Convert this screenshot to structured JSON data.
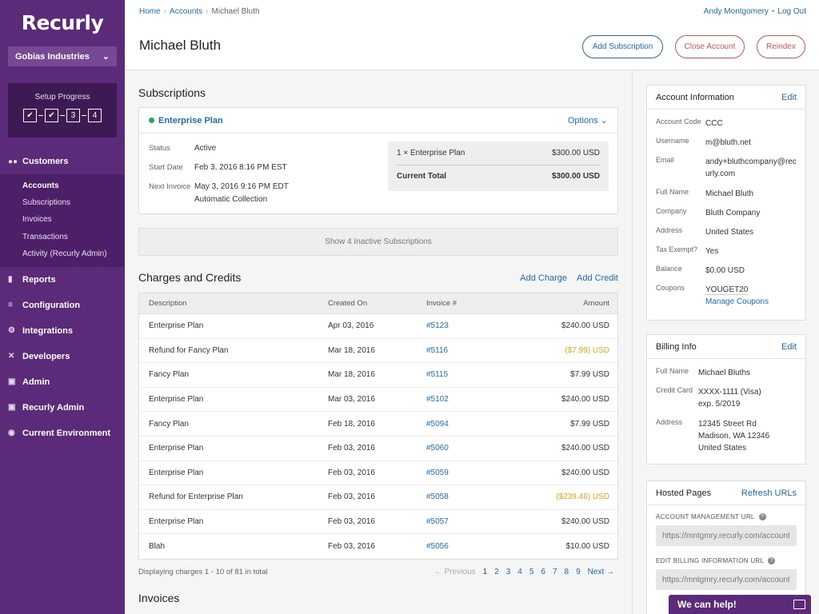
{
  "sidebar": {
    "logo": "Recurly",
    "org": "Gobias Industries",
    "setup_title": "Setup Progress",
    "steps": [
      "✔",
      "✔",
      "3",
      "4"
    ],
    "nav": [
      {
        "icon": "users-icon",
        "glyph": "👥",
        "label": "Customers"
      },
      {
        "icon": "reports-icon",
        "glyph": "▮",
        "label": "Reports"
      },
      {
        "icon": "sliders-icon",
        "glyph": "⚙",
        "label": "Configuration"
      },
      {
        "icon": "integrations-icon",
        "glyph": "⚙",
        "label": "Integrations"
      },
      {
        "icon": "wrench-icon",
        "glyph": "✕",
        "label": "Developers"
      },
      {
        "icon": "lock-icon",
        "glyph": "🔒",
        "label": "Admin"
      },
      {
        "icon": "lock-icon",
        "glyph": "🔒",
        "label": "Recurly Admin"
      },
      {
        "icon": "globe-icon",
        "glyph": "◉",
        "label": "Current Environment"
      }
    ],
    "customers_sub": [
      "Accounts",
      "Subscriptions",
      "Invoices",
      "Transactions",
      "Activity (Recurly Admin)"
    ]
  },
  "header": {
    "breadcrumb": [
      "Home",
      "Accounts",
      "Michael Bluth"
    ],
    "user": "Andy Montgomery",
    "logout": "Log Out",
    "title": "Michael Bluth",
    "add_subscription": "Add Subscription",
    "close_account": "Close Account",
    "reindex": "Reindex"
  },
  "subscriptions": {
    "title": "Subscriptions",
    "plan": "Enterprise Plan",
    "options": "Options ⌄",
    "status_label": "Status",
    "status": "Active",
    "start_label": "Start Date",
    "start": "Feb 3, 2016 8:16 PM EST",
    "next_label": "Next Invoice",
    "next": "May 3, 2016 9:16 PM EDT",
    "collection": "Automatic Collection",
    "line_item": "1 × Enterprise Plan",
    "line_amount": "$300.00 USD",
    "total_label": "Current Total",
    "total": "$300.00 USD",
    "inactive": "Show 4 Inactive Subscriptions"
  },
  "charges": {
    "title": "Charges and Credits",
    "add_charge": "Add Charge",
    "add_credit": "Add Credit",
    "columns": [
      "Description",
      "Created On",
      "Invoice #",
      "Amount"
    ],
    "rows": [
      {
        "desc": "Enterprise Plan",
        "date": "Apr 03, 2016",
        "inv": "#5123",
        "amt": "$240.00 USD"
      },
      {
        "desc": "Refund for Fancy Plan",
        "date": "Mar 18, 2016",
        "inv": "#5116",
        "amt": "($7.99) USD"
      },
      {
        "desc": "Fancy Plan",
        "date": "Mar 18, 2016",
        "inv": "#5115",
        "amt": "$7.99 USD"
      },
      {
        "desc": "Enterprise Plan",
        "date": "Mar 03, 2016",
        "inv": "#5102",
        "amt": "$240.00 USD"
      },
      {
        "desc": "Fancy Plan",
        "date": "Feb 18, 2016",
        "inv": "#5094",
        "amt": "$7.99 USD"
      },
      {
        "desc": "Enterprise Plan",
        "date": "Feb 03, 2016",
        "inv": "#5060",
        "amt": "$240.00 USD"
      },
      {
        "desc": "Enterprise Plan",
        "date": "Feb 03, 2016",
        "inv": "#5059",
        "amt": "$240.00 USD"
      },
      {
        "desc": "Refund for Enterprise Plan",
        "date": "Feb 03, 2016",
        "inv": "#5058",
        "amt": "($239.46) USD"
      },
      {
        "desc": "Enterprise Plan",
        "date": "Feb 03, 2016",
        "inv": "#5057",
        "amt": "$240.00 USD"
      },
      {
        "desc": "Blah",
        "date": "Feb 03, 2016",
        "inv": "#5056",
        "amt": "$10.00 USD"
      }
    ],
    "displaying": "Displaying charges 1 - 10 of 81 in total",
    "previous": "← Previous",
    "pages": [
      "1",
      "2",
      "3",
      "4",
      "5",
      "6",
      "7",
      "8",
      "9"
    ],
    "next": "Next →"
  },
  "invoices": {
    "title": "Invoices"
  },
  "account_info": {
    "title": "Account Information",
    "edit": "Edit",
    "fields": [
      {
        "k": "Account Code",
        "v": "CCC"
      },
      {
        "k": "Username",
        "v": "m@bluth.net"
      },
      {
        "k": "Email",
        "v": "andy+bluthcompany@recurly.com"
      },
      {
        "k": "Full Name",
        "v": "Michael Bluth"
      },
      {
        "k": "Company",
        "v": "Bluth Company"
      },
      {
        "k": "Address",
        "v": "United States"
      },
      {
        "k": "Tax Exempt?",
        "v": "Yes"
      },
      {
        "k": "Balance",
        "v": "$0.00 USD"
      },
      {
        "k": "Coupons",
        "v": "YOUGET20"
      }
    ],
    "manage_coupons": "Manage Coupons"
  },
  "billing_info": {
    "title": "Billing Info",
    "edit": "Edit",
    "full_name_label": "Full Name",
    "full_name": "Michael Bluths",
    "card_label": "Credit Card",
    "card": "XXXX-1111 (Visa)",
    "exp": "exp. 5/2019",
    "address_label": "Address",
    "address1": "12345 Street Rd",
    "address2": "Madison, WA 12346",
    "address3": "United States"
  },
  "hosted_pages": {
    "title": "Hosted Pages",
    "refresh": "Refresh URLs",
    "acct_label": "ACCOUNT MANAGEMENT URL",
    "acct_url": "https://mntgmry.recurly.com/account",
    "billing_label": "EDIT BILLING INFORMATION URL",
    "billing_url": "https://mntgmry.recurly.com/account"
  },
  "help": {
    "label": "We can help!"
  }
}
